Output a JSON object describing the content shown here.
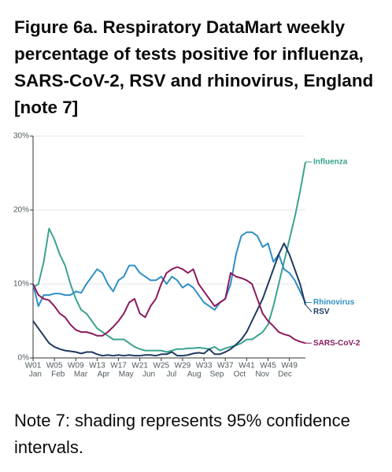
{
  "chart_data": {
    "type": "line",
    "title": "Figure 6a. Respiratory DataMart weekly percentage of tests positive for influenza, SARS-CoV-2, RSV and rhinovirus, England [note 7]",
    "x": [
      1,
      2,
      3,
      4,
      5,
      6,
      7,
      8,
      9,
      10,
      11,
      12,
      13,
      14,
      15,
      16,
      17,
      18,
      19,
      20,
      21,
      22,
      23,
      24,
      25,
      26,
      27,
      28,
      29,
      30,
      31,
      32,
      33,
      34,
      35,
      36,
      37,
      38,
      39,
      40,
      41,
      42,
      43,
      44,
      45,
      46,
      47,
      48,
      49,
      50,
      51,
      52
    ],
    "xlim": [
      1,
      52
    ],
    "xticks": [
      {
        "value": 1,
        "label": "W01"
      },
      {
        "value": 5,
        "label": "W05"
      },
      {
        "value": 9,
        "label": "W09"
      },
      {
        "value": 13,
        "label": "W13"
      },
      {
        "value": 17,
        "label": "W17"
      },
      {
        "value": 21,
        "label": "W21"
      },
      {
        "value": 25,
        "label": "W25"
      },
      {
        "value": 29,
        "label": "W29"
      },
      {
        "value": 33,
        "label": "W33"
      },
      {
        "value": 37,
        "label": "W37"
      },
      {
        "value": 41,
        "label": "W41"
      },
      {
        "value": 45,
        "label": "W45"
      },
      {
        "value": 49,
        "label": "W49"
      }
    ],
    "months": [
      "Jan",
      "Feb",
      "Mar",
      "Apr",
      "May",
      "Jun",
      "Jul",
      "Aug",
      "Sep",
      "Oct",
      "Nov",
      "Dec"
    ],
    "ylim": [
      0,
      30
    ],
    "yticks": [
      {
        "value": 0,
        "label": "0%"
      },
      {
        "value": 10,
        "label": "10%"
      },
      {
        "value": 20,
        "label": "20%"
      },
      {
        "value": 30,
        "label": "30%"
      }
    ],
    "grid": true,
    "series": [
      {
        "name": "Influenza",
        "color": "#3aa38f",
        "values": [
          9.5,
          10,
          13,
          17.5,
          16,
          14,
          12.5,
          10,
          8,
          6.5,
          6,
          5,
          4,
          3.5,
          3,
          2.5,
          2.5,
          2.5,
          2,
          1.5,
          1.2,
          1,
          1,
          1,
          1,
          0.8,
          1,
          1.2,
          1.2,
          1.3,
          1.3,
          1.4,
          1.3,
          1.2,
          1.5,
          1,
          1.3,
          1.5,
          1.7,
          2,
          2.5,
          2.5,
          3,
          3.5,
          4.5,
          7,
          10,
          13,
          16,
          19,
          22.5,
          26.5
        ]
      },
      {
        "name": "Rhinovirus",
        "color": "#2f8fc4",
        "values": [
          10,
          7,
          8.5,
          8.5,
          8.7,
          8.7,
          8.5,
          8.5,
          9,
          8.8,
          10,
          11,
          12,
          11.5,
          10,
          9,
          10.5,
          11,
          12.5,
          12.5,
          11.5,
          11,
          10.5,
          10.5,
          11,
          10,
          11,
          10.5,
          9.5,
          10,
          9.5,
          8.5,
          7.5,
          7,
          6.5,
          7.5,
          8,
          10,
          14,
          16.5,
          17,
          17,
          16.5,
          15,
          15.5,
          13,
          14,
          12,
          11.5,
          10.5,
          9,
          7.5
        ]
      },
      {
        "name": "RSV",
        "color": "#1f3a60",
        "values": [
          5,
          4,
          3,
          2,
          1.5,
          1.2,
          1,
          0.9,
          0.8,
          0.6,
          0.8,
          0.8,
          0.5,
          0.3,
          0.4,
          0.3,
          0.4,
          0.3,
          0.4,
          0.3,
          0.3,
          0.4,
          0.4,
          0.3,
          0.5,
          0.5,
          0.8,
          0.3,
          0.3,
          0.4,
          0.6,
          0.7,
          0.6,
          1.2,
          0.5,
          0.5,
          0.8,
          1.2,
          1.8,
          2.5,
          3.5,
          5,
          6.5,
          8,
          10,
          12,
          14,
          15.5,
          14,
          12,
          10,
          7.2
        ]
      },
      {
        "name": "SARS-CoV-2",
        "color": "#8b1a5e",
        "values": [
          10,
          8.5,
          8,
          7.8,
          7,
          6,
          5.5,
          4.5,
          3.8,
          3.5,
          3.5,
          3.3,
          3,
          3,
          3.5,
          4.2,
          5,
          6,
          7.5,
          8,
          6,
          5.5,
          7,
          8,
          10,
          11.5,
          12,
          12.3,
          12,
          11.5,
          12,
          10,
          9,
          8,
          7,
          7.5,
          8,
          11.5,
          11,
          10.8,
          10.5,
          10,
          8,
          6,
          5,
          4.3,
          3.5,
          3.2,
          3,
          2.5,
          2.2,
          2
        ]
      }
    ]
  },
  "note": "Note 7: shading represents 95% confidence intervals."
}
